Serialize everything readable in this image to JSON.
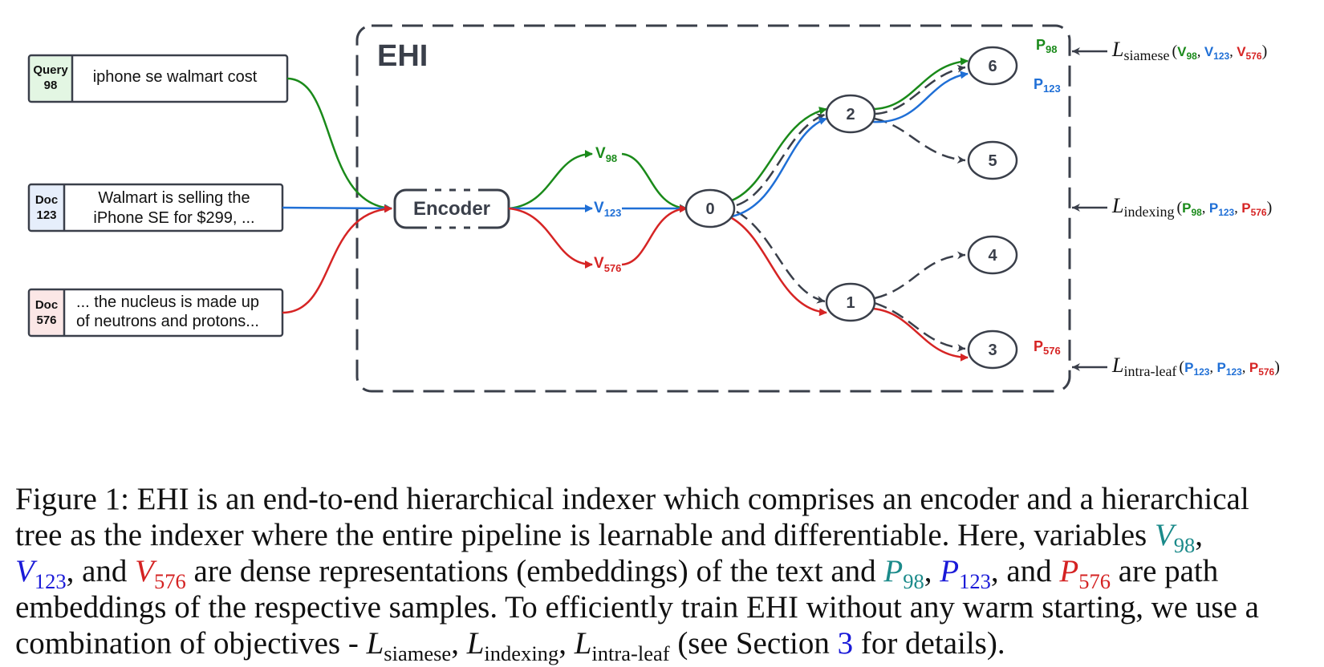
{
  "figure": {
    "ehi_label": "EHI",
    "encoder_label": "Encoder",
    "inputs": [
      {
        "tag_line1": "Query",
        "tag_line2": "98",
        "text_line1": "iphone se walmart cost",
        "text_line2": ""
      },
      {
        "tag_line1": "Doc",
        "tag_line2": "123",
        "text_line1": "Walmart is selling the",
        "text_line2": "iPhone SE for $299, ..."
      },
      {
        "tag_line1": "Doc",
        "tag_line2": "576",
        "text_line1": "... the nucleus is made up",
        "text_line2": "of neutrons and protons..."
      }
    ],
    "embeddings": [
      {
        "base": "V",
        "sub": "98"
      },
      {
        "base": "V",
        "sub": "123"
      },
      {
        "base": "V",
        "sub": "576"
      }
    ],
    "nodes": [
      "0",
      "1",
      "2",
      "3",
      "4",
      "5",
      "6"
    ],
    "paths": [
      {
        "base": "P",
        "sub": "98"
      },
      {
        "base": "P",
        "sub": "123"
      },
      {
        "base": "P",
        "sub": "576"
      }
    ],
    "losses": [
      {
        "base": "L",
        "sub": "siamese",
        "open": "(",
        "a": "V",
        "a_sub": "98",
        "b": "V",
        "b_sub": "123",
        "c": "V",
        "c_sub": "576",
        "close": ")"
      },
      {
        "base": "L",
        "sub": "indexing",
        "open": "(",
        "a": "P",
        "a_sub": "98",
        "b": "P",
        "b_sub": "123",
        "c": "P",
        "c_sub": "576",
        "close": ")"
      },
      {
        "base": "L",
        "sub": "intra-leaf",
        "open": "(",
        "a": "P",
        "a_sub": "123",
        "b": "P",
        "b_sub": "123",
        "c": "P",
        "c_sub": "576",
        "close": ")"
      }
    ],
    "colors": {
      "green": "#1a8a1a",
      "blue": "#1f6fd6",
      "red": "#d62424",
      "dark": "#3a3f4a"
    }
  },
  "caption": {
    "l1": "Figure 1: EHI is an end-to-end hierarchical indexer which comprises an encoder and a hierarchical",
    "l2a": "tree as the indexer where the entire pipeline is learnable and differentiable.  Here, variables ",
    "v": "V",
    "s98": "98",
    "s123": "123",
    "s576": "576",
    "p": "P",
    "l": "L",
    "comma": ",",
    "and": ", and ",
    "l3a": " are dense representations (embeddings) of the text and ",
    "l3b": " are path",
    "l4": "embeddings of the respective samples. To efficiently train EHI without any warm starting, we use a",
    "l5a": "combination of objectives - ",
    "siamese": "siamese",
    "indexing": "indexing",
    "intraleaf": "intra-leaf",
    "l5b": " (see Section ",
    "section": "3",
    "l5c": " for details)."
  }
}
